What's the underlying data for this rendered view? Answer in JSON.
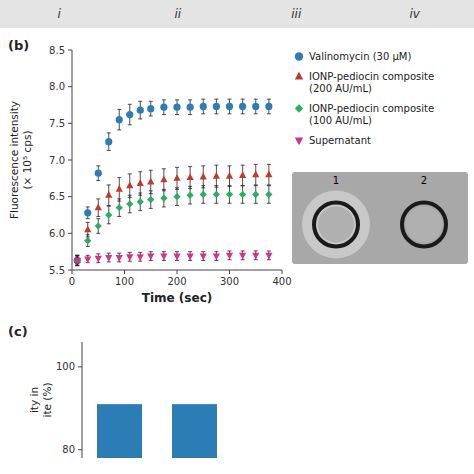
{
  "chart_data": [
    {
      "type": "scatter",
      "title": "(b)",
      "annotations": [
        [
          "i",
          "ii",
          "iii",
          "iv"
        ],
        [
          "1",
          "2"
        ]
      ],
      "xlabel": "Time (sec)",
      "ylabel": "Fluorescence intensity\n(× 10⁵ cps)",
      "xlim": [
        0,
        400
      ],
      "ylim": [
        5.5,
        8.5
      ],
      "xticks": [
        0,
        100,
        200,
        300,
        400
      ],
      "yticks": [
        5.5,
        {
          "value": 6.0,
          "label": "6.0"
        },
        6.5,
        {
          "value": 7.0,
          "label": "7.0"
        },
        7.5,
        {
          "value": 8.0,
          "label": "8.0"
        },
        8.5
      ],
      "legend": "right",
      "x": [
        10,
        30,
        50,
        70,
        90,
        110,
        130,
        150,
        175,
        200,
        225,
        250,
        275,
        300,
        325,
        350,
        375
      ],
      "series": [
        {
          "name": "Valinomycin (30 μM)",
          "color": "#2a7db5",
          "marker": "circle",
          "values": [
            5.63,
            6.28,
            6.82,
            7.25,
            7.55,
            7.62,
            7.68,
            7.7,
            7.72,
            7.72,
            7.72,
            7.73,
            7.73,
            7.73,
            7.73,
            7.73,
            7.73
          ],
          "yerr": [
            0.07,
            0.08,
            0.1,
            0.12,
            0.14,
            0.14,
            0.12,
            0.1,
            0.1,
            0.1,
            0.1,
            0.1,
            0.1,
            0.1,
            0.1,
            0.1,
            0.1
          ]
        },
        {
          "name": "IONP-pediocin composite\n(200 AU/mL)",
          "color": "#c0392b",
          "marker": "triangle-up",
          "values": [
            5.63,
            6.05,
            6.35,
            6.52,
            6.6,
            6.65,
            6.68,
            6.7,
            6.73,
            6.75,
            6.76,
            6.77,
            6.78,
            6.78,
            6.79,
            6.8,
            6.8
          ],
          "yerr": [
            0.07,
            0.1,
            0.12,
            0.14,
            0.16,
            0.16,
            0.16,
            0.16,
            0.15,
            0.15,
            0.15,
            0.15,
            0.15,
            0.14,
            0.14,
            0.14,
            0.14
          ]
        },
        {
          "name": "IONP-pediocin composite\n(100 AU/mL)",
          "color": "#27ae60",
          "marker": "diamond",
          "values": [
            5.63,
            5.9,
            6.1,
            6.25,
            6.35,
            6.4,
            6.43,
            6.46,
            6.48,
            6.5,
            6.52,
            6.53,
            6.53,
            6.53,
            6.53,
            6.53,
            6.53
          ],
          "yerr": [
            0.07,
            0.08,
            0.1,
            0.12,
            0.12,
            0.12,
            0.12,
            0.12,
            0.12,
            0.12,
            0.12,
            0.12,
            0.12,
            0.12,
            0.12,
            0.12,
            0.12
          ]
        },
        {
          "name": "Supernatant",
          "color": "#d63090",
          "marker": "triangle-down",
          "values": [
            5.63,
            5.65,
            5.66,
            5.67,
            5.67,
            5.68,
            5.68,
            5.69,
            5.69,
            5.69,
            5.69,
            5.69,
            5.69,
            5.7,
            5.7,
            5.7,
            5.7
          ],
          "yerr": [
            0.05,
            0.05,
            0.06,
            0.06,
            0.06,
            0.06,
            0.06,
            0.06,
            0.06,
            0.06,
            0.06,
            0.06,
            0.06,
            0.06,
            0.06,
            0.06,
            0.06
          ]
        }
      ]
    },
    {
      "type": "bar",
      "title": "(c)",
      "categories": [
        null,
        null
      ],
      "values": [
        91,
        91
      ],
      "color": "#2a7db5",
      "ylabel": "ity in\nite (%)",
      "ylim": [
        78,
        106
      ],
      "yticks": [
        80,
        100
      ]
    }
  ]
}
